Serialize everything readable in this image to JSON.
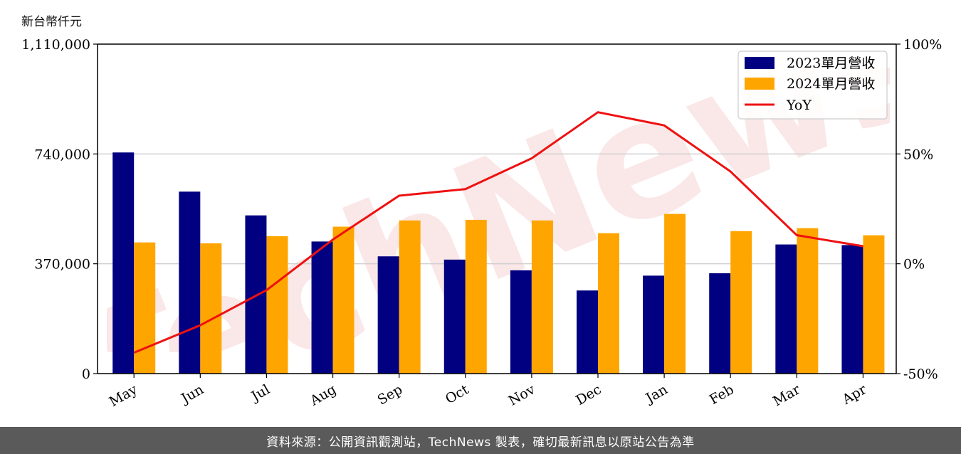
{
  "chart_data": {
    "type": "bar",
    "unit_label": "新台幣仟元",
    "categories": [
      "May",
      "Jun",
      "Jul",
      "Aug",
      "Sep",
      "Oct",
      "Nov",
      "Dec",
      "Jan",
      "Feb",
      "Mar",
      "Apr"
    ],
    "series": [
      {
        "name": "2023單月營收",
        "color": "#000080",
        "values": [
          745000,
          613000,
          533000,
          445000,
          395000,
          384000,
          348000,
          280000,
          330000,
          338000,
          435000,
          433000
        ]
      },
      {
        "name": "2024單月營收",
        "color": "#FFA500",
        "values": [
          442000,
          439000,
          463000,
          495000,
          516000,
          518000,
          516000,
          473000,
          538000,
          480000,
          490000,
          466000
        ]
      }
    ],
    "line_series": {
      "name": "YoY",
      "color": "#EE1111",
      "axis": "right",
      "values": [
        -40.5,
        -28.0,
        -12.0,
        11.0,
        31.0,
        34.0,
        48.0,
        69.0,
        63.0,
        42.0,
        13.0,
        8.0
      ]
    },
    "y_left": {
      "ticks": [
        "0",
        "370,000",
        "740,000",
        "1,110,000"
      ],
      "tick_values": [
        0,
        370000,
        740000,
        1110000
      ],
      "range": [
        0,
        1110000
      ]
    },
    "y_right": {
      "ticks": [
        "-50%",
        "0%",
        "50%",
        "100%"
      ],
      "tick_values": [
        -50,
        0,
        50,
        100
      ],
      "range": [
        -50,
        100
      ]
    },
    "grid": "horizontal",
    "legend_position": "top-right"
  },
  "footer_text": "資料來源：公開資訊觀測站，TechNews 製表，確切最新訊息以原站公告為準",
  "watermark_text": "TechNews"
}
